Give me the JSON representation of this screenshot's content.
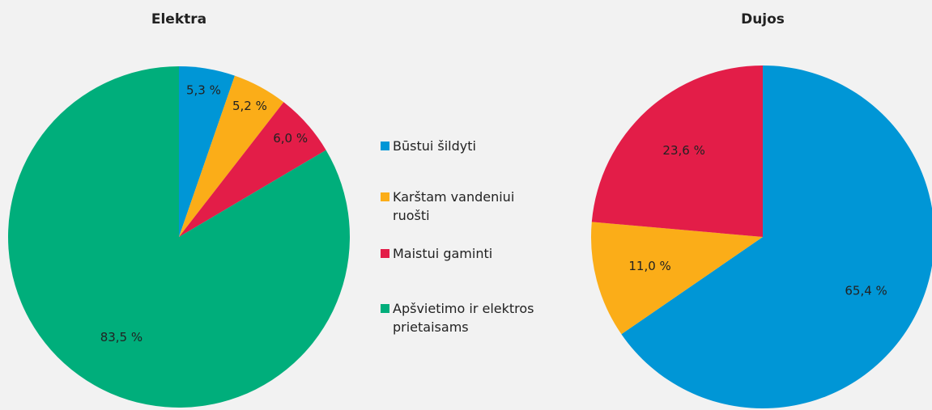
{
  "legend": {
    "labels": [
      "Būstui šildyti",
      "Karštam vandeniui ruošti",
      "Maistui gaminti",
      "Apšvietimo ir elektros prietaisams"
    ],
    "colors": [
      "#0096d6",
      "#fbad18",
      "#e31d48",
      "#00ae7b"
    ]
  },
  "chart_data": [
    {
      "type": "pie",
      "title": "Elektra",
      "values": [
        5.3,
        5.2,
        6.0,
        83.5
      ],
      "value_labels": [
        "5,3 %",
        "5,2 %",
        "6,0 %",
        "83,5 %"
      ]
    },
    {
      "type": "pie",
      "title": "Dujos",
      "values": [
        65.4,
        11.0,
        23.6
      ],
      "value_labels": [
        "65,4 %",
        "11,0 %",
        "23,6 %"
      ]
    }
  ]
}
